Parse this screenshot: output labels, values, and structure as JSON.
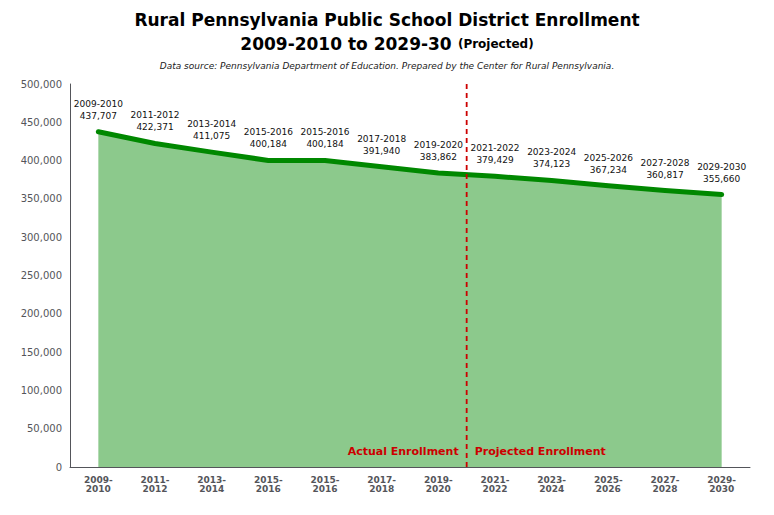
{
  "chart_data": {
    "type": "line",
    "title": "Rural Pennsylvania Public School District Enrollment",
    "subtitle": "2009-2010 to 2029-30",
    "subtitle_suffix": "(Projected)",
    "source": "Data source: Pennsylvania Department of Education. Prepared by the Center for Rural Pennsylvania.",
    "categories": [
      "2009-\n2010",
      "2011-\n2012",
      "2013-\n2014",
      "2015-\n2016",
      "2015-\n2016",
      "2017-\n2018",
      "2019-\n2020",
      "2021-\n2022",
      "2023-\n2024",
      "2025-\n2026",
      "2027-\n2028",
      "2029-\n2030"
    ],
    "values": [
      437707,
      422371,
      411075,
      400184,
      400184,
      391940,
      383862,
      379429,
      374123,
      367234,
      360817,
      355660
    ],
    "data_labels": true,
    "value_labels": [
      "437,707",
      "422,371",
      "411,075",
      "400,184",
      "400,184",
      "391,940",
      "383,862",
      "379,429",
      "374,123",
      "367,234",
      "360,817",
      "355,660"
    ],
    "label_years": [
      "2009-2010",
      "2011-2012",
      "2013-2014",
      "2015-2016",
      "2015-2016",
      "2017-2018",
      "2019-2020",
      "2021-2022",
      "2023-2024",
      "2025-2026",
      "2027-2028",
      "2029-2030"
    ],
    "color": "#008800",
    "ylim": [
      0,
      500000
    ],
    "yticks": [
      0,
      {
        "value": 50000,
        "label": "50,000"
      },
      {
        "value": 100000,
        "label": "100,000"
      },
      {
        "value": 150000,
        "label": "150,000"
      },
      {
        "value": 200000,
        "label": "200,000"
      },
      {
        "value": 250000,
        "label": "250,000"
      },
      {
        "value": 300000,
        "label": "300,000"
      },
      {
        "value": 350000,
        "label": "350,000"
      },
      {
        "value": 400000,
        "label": "400,000"
      },
      {
        "value": 450000,
        "label": "450,000"
      },
      {
        "value": 500000,
        "label": "500,000"
      }
    ],
    "grid": false,
    "divider": {
      "from": "2021-2022",
      "color": "#cc0000"
    },
    "annotations": [
      {
        "text": "Actual Enrollment",
        "color": "#cc0000"
      },
      {
        "text": "Projected Enrollment",
        "color": "#cc0000"
      }
    ]
  }
}
